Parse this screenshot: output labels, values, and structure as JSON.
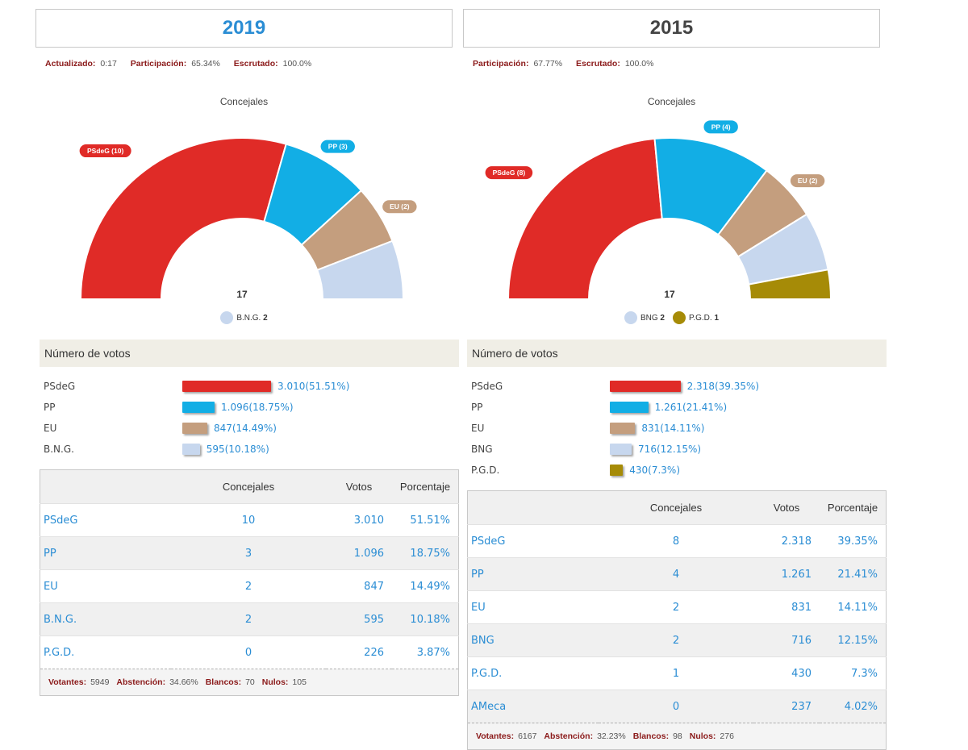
{
  "colors": {
    "PSdeG": "#e02b27",
    "PP": "#12aee5",
    "EU": "#c49e7e",
    "BNG": "#c7d7ee",
    "PGD": "#a68b07",
    "title_2019": "#2a8dd4",
    "title_2015": "#444444",
    "label_red": "#8b1a1a",
    "link_blue": "#2a8dd4"
  },
  "left": {
    "year": "2019",
    "stats": [
      {
        "label": "Actualizado:",
        "value": "0:17"
      },
      {
        "label": "Participación:",
        "value": "65.34%"
      },
      {
        "label": "Escrutado:",
        "value": "100.0%"
      }
    ],
    "chart_title": "Concejales",
    "chart_data": {
      "type": "pie",
      "title": "Concejales",
      "total_label": "17",
      "total": 17,
      "slices": [
        {
          "party": "PSdeG",
          "seats": 10,
          "label": "PSdeG (10)",
          "color": "#e02b27"
        },
        {
          "party": "PP",
          "seats": 3,
          "label": "PP (3)",
          "color": "#12aee5"
        },
        {
          "party": "EU",
          "seats": 2,
          "label": "EU (2)",
          "color": "#c49e7e"
        },
        {
          "party": "B.N.G.",
          "seats": 2,
          "label": "",
          "color": "#c7d7ee"
        }
      ],
      "legend": [
        {
          "name": "B.N.G.",
          "seats": "2",
          "color": "#c7d7ee"
        }
      ]
    },
    "votes_title": "Número de votos",
    "bars": [
      {
        "name": "PSdeG",
        "value": "3.010(51.51%)",
        "pct": 51.51,
        "color": "#e02b27"
      },
      {
        "name": "PP",
        "value": "1.096(18.75%)",
        "pct": 18.75,
        "color": "#12aee5"
      },
      {
        "name": "EU",
        "value": "847(14.49%)",
        "pct": 14.49,
        "color": "#c49e7e"
      },
      {
        "name": "B.N.G.",
        "value": "595(10.18%)",
        "pct": 10.18,
        "color": "#c7d7ee"
      }
    ],
    "table": {
      "headers": [
        "",
        "Concejales",
        "Votos",
        "Porcentaje"
      ],
      "rows": [
        [
          "PSdeG",
          "10",
          "3.010",
          "51.51%"
        ],
        [
          "PP",
          "3",
          "1.096",
          "18.75%"
        ],
        [
          "EU",
          "2",
          "847",
          "14.49%"
        ],
        [
          "B.N.G.",
          "2",
          "595",
          "10.18%"
        ],
        [
          "P.G.D.",
          "0",
          "226",
          "3.87%"
        ]
      ],
      "footer": [
        {
          "label": "Votantes:",
          "value": "5949"
        },
        {
          "label": "Abstención:",
          "value": "34.66%"
        },
        {
          "label": "Blancos:",
          "value": "70"
        },
        {
          "label": "Nulos:",
          "value": "105"
        }
      ]
    }
  },
  "right": {
    "year": "2015",
    "stats": [
      {
        "label": "Participación:",
        "value": "67.77%"
      },
      {
        "label": "Escrutado:",
        "value": "100.0%"
      }
    ],
    "chart_title": "Concejales",
    "chart_data": {
      "type": "pie",
      "title": "Concejales",
      "total_label": "17",
      "total": 17,
      "slices": [
        {
          "party": "PSdeG",
          "seats": 8,
          "label": "PSdeG (8)",
          "color": "#e02b27"
        },
        {
          "party": "PP",
          "seats": 4,
          "label": "PP (4)",
          "color": "#12aee5"
        },
        {
          "party": "EU",
          "seats": 2,
          "label": "EU (2)",
          "color": "#c49e7e"
        },
        {
          "party": "BNG",
          "seats": 2,
          "label": "",
          "color": "#c7d7ee"
        },
        {
          "party": "P.G.D.",
          "seats": 1,
          "label": "",
          "color": "#a68b07"
        }
      ],
      "legend": [
        {
          "name": "BNG",
          "seats": "2",
          "color": "#c7d7ee"
        },
        {
          "name": "P.G.D.",
          "seats": "1",
          "color": "#a68b07"
        }
      ]
    },
    "votes_title": "Número de votos",
    "bars": [
      {
        "name": "PSdeG",
        "value": "2.318(39.35%)",
        "pct": 39.35,
        "color": "#e02b27"
      },
      {
        "name": "PP",
        "value": "1.261(21.41%)",
        "pct": 21.41,
        "color": "#12aee5"
      },
      {
        "name": "EU",
        "value": "831(14.11%)",
        "pct": 14.11,
        "color": "#c49e7e"
      },
      {
        "name": "BNG",
        "value": "716(12.15%)",
        "pct": 12.15,
        "color": "#c7d7ee"
      },
      {
        "name": "P.G.D.",
        "value": "430(7.3%)",
        "pct": 7.3,
        "color": "#a68b07"
      }
    ],
    "table": {
      "headers": [
        "",
        "Concejales",
        "Votos",
        "Porcentaje"
      ],
      "rows": [
        [
          "PSdeG",
          "8",
          "2.318",
          "39.35%"
        ],
        [
          "PP",
          "4",
          "1.261",
          "21.41%"
        ],
        [
          "EU",
          "2",
          "831",
          "14.11%"
        ],
        [
          "BNG",
          "2",
          "716",
          "12.15%"
        ],
        [
          "P.G.D.",
          "1",
          "430",
          "7.3%"
        ],
        [
          "AMeca",
          "0",
          "237",
          "4.02%"
        ]
      ],
      "footer": [
        {
          "label": "Votantes:",
          "value": "6167"
        },
        {
          "label": "Abstención:",
          "value": "32.23%"
        },
        {
          "label": "Blancos:",
          "value": "98"
        },
        {
          "label": "Nulos:",
          "value": "276"
        }
      ]
    }
  }
}
